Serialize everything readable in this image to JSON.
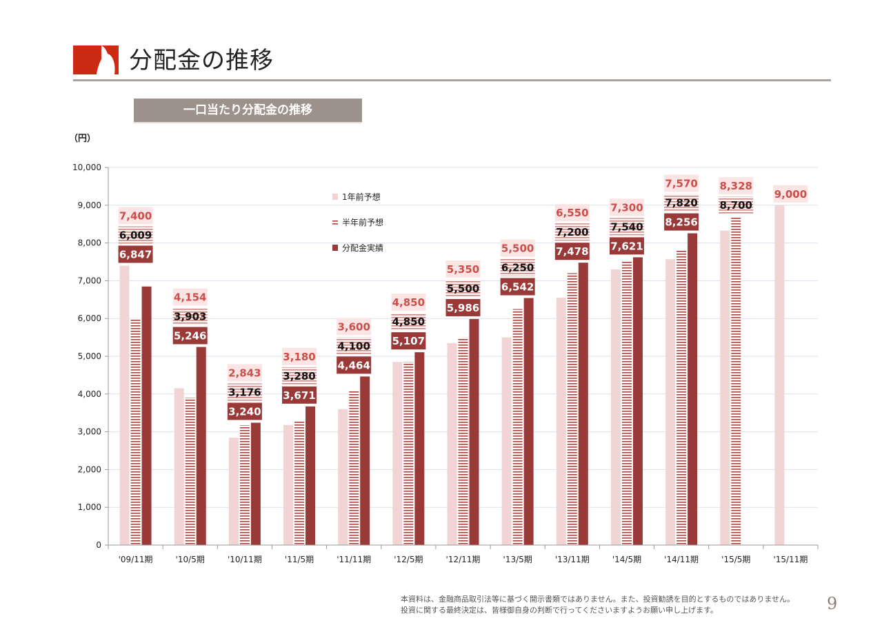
{
  "header": {
    "title": "分配金の推移",
    "logo_icon": "company-logo-icon",
    "accent_color": "#cc2a12"
  },
  "subtitle": "一口当たり分配金の推移",
  "unit": "（円）",
  "footer": {
    "line1": "本資料は、金融商品取引法等に基づく開示書類ではありません。また、投資勧誘を目的とするものではありません。",
    "line2": "投資に関する最終決定は、皆様御自身の判断で行ってくださいますようお願い申し上げます。"
  },
  "page_number": "9",
  "chart_data": {
    "type": "bar",
    "categories": [
      "'09/11期",
      "'10/5期",
      "'10/11期",
      "'11/5期",
      "'11/11期",
      "'12/5期",
      "'12/11期",
      "'13/5期",
      "'13/11期",
      "'14/5期",
      "'14/11期",
      "'15/5期",
      "'15/11期"
    ],
    "series": [
      {
        "name": "1年前予想",
        "color": "#f2d4d4",
        "values": [
          7400,
          4154,
          2843,
          3180,
          3600,
          4850,
          5350,
          5500,
          6550,
          7300,
          7570,
          8328,
          9000
        ],
        "labels": [
          "7,400",
          "4,154",
          "2,843",
          "3,180",
          "3,600",
          "4,850",
          "5,350",
          "5,500",
          "6,550",
          "7,300",
          "7,570",
          "8,328",
          "9,000"
        ]
      },
      {
        "name": "半年前予想",
        "color": "#a33b38",
        "values": [
          6009,
          3903,
          3176,
          3280,
          4100,
          4850,
          5500,
          6250,
          7200,
          7540,
          7820,
          8700,
          null
        ],
        "labels": [
          "6,009",
          "3,903",
          "3,176",
          "3,280",
          "4,100",
          "4,850",
          "5,500",
          "6,250",
          "7,200",
          "7,540",
          "7,820",
          "8,700",
          ""
        ]
      },
      {
        "name": "分配金実績",
        "color": "#9a3a38",
        "values": [
          6847,
          5246,
          3240,
          3671,
          4464,
          5107,
          5986,
          6542,
          7478,
          7621,
          8256,
          null,
          null
        ],
        "labels": [
          "6,847",
          "5,246",
          "3,240",
          "3,671",
          "4,464",
          "5,107",
          "5,986",
          "6,542",
          "7,478",
          "7,621",
          "8,256",
          "",
          ""
        ]
      }
    ],
    "ylim": [
      0,
      10000
    ],
    "yticks": [
      0,
      1000,
      2000,
      3000,
      4000,
      5000,
      6000,
      7000,
      8000,
      9000,
      10000
    ],
    "ytick_labels": [
      "0",
      "1,000",
      "2,000",
      "3,000",
      "4,000",
      "5,000",
      "6,000",
      "7,000",
      "8,000",
      "9,000",
      "10,000"
    ],
    "grid": true,
    "legend_position": "top-center"
  }
}
